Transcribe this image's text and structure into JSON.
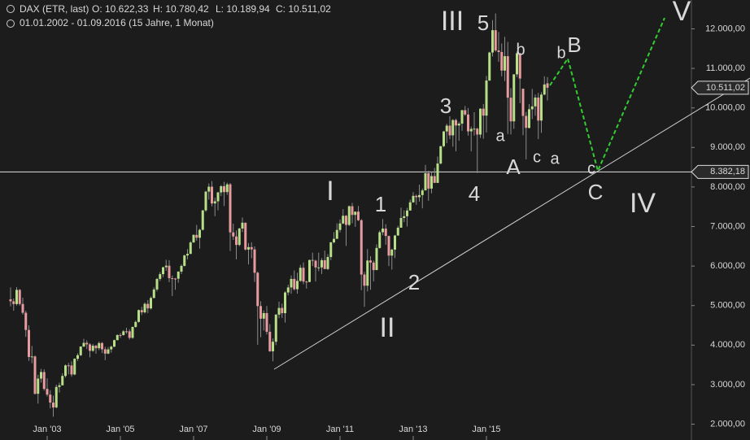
{
  "header": {
    "symbol": "DAX (ETR, last)",
    "open": "O: 10.622,33",
    "high": "H: 10.780,42",
    "low": "L: 10.189,94",
    "close": "C: 10.511,02",
    "range": "01.01.2002 - 01.09.2016 (15 Jahre, 1 Monat)"
  },
  "chart_data": {
    "type": "candlestick",
    "categories": [
      null,
      null,
      null,
      null,
      null,
      null,
      null,
      null,
      null,
      null,
      null,
      null,
      "Jan '03",
      null,
      null,
      null,
      null,
      null,
      null,
      null,
      null,
      null,
      null,
      null,
      null,
      null,
      null,
      null,
      null,
      null,
      null,
      null,
      null,
      null,
      null,
      null,
      "Jan '05",
      null,
      null,
      null,
      null,
      null,
      null,
      null,
      null,
      null,
      null,
      null,
      null,
      null,
      null,
      null,
      null,
      null,
      null,
      null,
      null,
      null,
      null,
      null,
      "Jan '07",
      null,
      null,
      null,
      null,
      null,
      null,
      null,
      null,
      null,
      null,
      null,
      null,
      null,
      null,
      null,
      null,
      null,
      null,
      null,
      null,
      null,
      null,
      null,
      "Jan '09",
      null,
      null,
      null,
      null,
      null,
      null,
      null,
      null,
      null,
      null,
      null,
      null,
      null,
      null,
      null,
      null,
      null,
      null,
      null,
      null,
      null,
      null,
      null,
      "Jan '11",
      null,
      null,
      null,
      null,
      null,
      null,
      null,
      null,
      null,
      null,
      null,
      null,
      null,
      null,
      null,
      null,
      null,
      null,
      null,
      null,
      null,
      null,
      null,
      "Jan '13",
      null,
      null,
      null,
      null,
      null,
      null,
      null,
      null,
      null,
      null,
      null,
      null,
      null,
      null,
      null,
      null,
      null,
      null,
      null,
      null,
      null,
      null,
      null,
      "Jan '15",
      null,
      null,
      null,
      null,
      null,
      null,
      null,
      null,
      null,
      null,
      null,
      null,
      null,
      null,
      null,
      null,
      null,
      null,
      null,
      null
    ],
    "ohlc": [
      [
        5160,
        5460,
        4980,
        5108
      ],
      [
        5108,
        5180,
        4870,
        5039
      ],
      [
        5039,
        5467,
        5000,
        5397
      ],
      [
        5397,
        5420,
        5000,
        5041
      ],
      [
        5041,
        5200,
        4770,
        4818
      ],
      [
        4818,
        4870,
        4210,
        4383
      ],
      [
        4383,
        4500,
        3600,
        3700
      ],
      [
        3700,
        3980,
        3540,
        3713
      ],
      [
        3713,
        3740,
        2750,
        2769
      ],
      [
        2769,
        3250,
        2520,
        3153
      ],
      [
        3153,
        3400,
        3050,
        3320
      ],
      [
        3320,
        3390,
        2850,
        2893
      ],
      [
        2893,
        3160,
        2700,
        2748
      ],
      [
        2748,
        2860,
        2400,
        2547
      ],
      [
        2547,
        2720,
        2190,
        2424
      ],
      [
        2424,
        3000,
        2400,
        2942
      ],
      [
        2942,
        3050,
        2800,
        2983
      ],
      [
        2983,
        3290,
        2980,
        3221
      ],
      [
        3221,
        3510,
        3180,
        3487
      ],
      [
        3487,
        3550,
        3260,
        3485
      ],
      [
        3485,
        3590,
        3200,
        3257
      ],
      [
        3257,
        3670,
        3240,
        3655
      ],
      [
        3655,
        3790,
        3600,
        3745
      ],
      [
        3745,
        3970,
        3720,
        3965
      ],
      [
        3965,
        4160,
        3950,
        4058
      ],
      [
        4058,
        4120,
        3900,
        4018
      ],
      [
        4018,
        4050,
        3690,
        3856
      ],
      [
        3856,
        4030,
        3830,
        3985
      ],
      [
        3985,
        4010,
        3780,
        3921
      ],
      [
        3921,
        4090,
        3870,
        4052
      ],
      [
        4052,
        4080,
        3800,
        3895
      ],
      [
        3895,
        3960,
        3620,
        3785
      ],
      [
        3785,
        3950,
        3770,
        3893
      ],
      [
        3893,
        3990,
        3810,
        3960
      ],
      [
        3960,
        4140,
        3950,
        4126
      ],
      [
        4126,
        4270,
        4120,
        4256
      ],
      [
        4256,
        4300,
        4180,
        4254
      ],
      [
        4254,
        4380,
        4240,
        4350
      ],
      [
        4350,
        4440,
        4290,
        4349
      ],
      [
        4349,
        4400,
        4140,
        4184
      ],
      [
        4184,
        4470,
        4160,
        4460
      ],
      [
        4460,
        4620,
        4440,
        4587
      ],
      [
        4587,
        4900,
        4570,
        4886
      ],
      [
        4886,
        4970,
        4760,
        4829
      ],
      [
        4829,
        5080,
        4800,
        5044
      ],
      [
        5044,
        5140,
        4810,
        4929
      ],
      [
        4929,
        5230,
        4900,
        5193
      ],
      [
        5193,
        5460,
        5180,
        5408
      ],
      [
        5408,
        5700,
        5360,
        5674
      ],
      [
        5674,
        5850,
        5620,
        5796
      ],
      [
        5796,
        5980,
        5720,
        5970
      ],
      [
        5970,
        6160,
        5880,
        6009
      ],
      [
        6009,
        6150,
        5590,
        5693
      ],
      [
        5693,
        5760,
        5240,
        5683
      ],
      [
        5683,
        5700,
        5400,
        5681
      ],
      [
        5681,
        5870,
        5580,
        5859
      ],
      [
        5859,
        6040,
        5800,
        6004
      ],
      [
        6004,
        6290,
        5990,
        6268
      ],
      [
        6268,
        6430,
        6170,
        6309
      ],
      [
        6309,
        6630,
        6300,
        6597
      ],
      [
        6597,
        6800,
        6590,
        6789
      ],
      [
        6789,
        7040,
        6640,
        6716
      ],
      [
        6716,
        6940,
        6440,
        6917
      ],
      [
        6917,
        7420,
        6900,
        7408
      ],
      [
        7408,
        7900,
        7370,
        7883
      ],
      [
        7883,
        8090,
        7680,
        8007
      ],
      [
        8007,
        8150,
        7510,
        7584
      ],
      [
        7584,
        7730,
        7260,
        7638
      ],
      [
        7638,
        7880,
        7410,
        7862
      ],
      [
        7862,
        8050,
        7770,
        8020
      ],
      [
        8020,
        8130,
        7520,
        7871
      ],
      [
        7871,
        8110,
        7800,
        8067
      ],
      [
        8067,
        8100,
        6380,
        6852
      ],
      [
        6852,
        7070,
        6660,
        6748
      ],
      [
        6748,
        6900,
        6170,
        6535
      ],
      [
        6535,
        6970,
        6500,
        6949
      ],
      [
        6949,
        7230,
        6860,
        7097
      ],
      [
        7097,
        7100,
        6390,
        6418
      ],
      [
        6418,
        6580,
        6040,
        6479
      ],
      [
        6479,
        6600,
        6200,
        6422
      ],
      [
        6422,
        6500,
        5600,
        5831
      ],
      [
        5831,
        5860,
        4010,
        4988
      ],
      [
        4988,
        5110,
        4200,
        4669
      ],
      [
        4669,
        4880,
        4370,
        4810
      ],
      [
        4810,
        4990,
        4270,
        4338
      ],
      [
        4338,
        4530,
        3830,
        3844
      ],
      [
        3844,
        4170,
        3590,
        4085
      ],
      [
        4085,
        4790,
        4000,
        4770
      ],
      [
        4770,
        5100,
        4680,
        4941
      ],
      [
        4941,
        5050,
        4690,
        4809
      ],
      [
        4809,
        5360,
        4570,
        5332
      ],
      [
        5332,
        5530,
        5260,
        5459
      ],
      [
        5459,
        5760,
        5300,
        5675
      ],
      [
        5675,
        5890,
        5380,
        5415
      ],
      [
        5415,
        5830,
        5300,
        5625
      ],
      [
        5625,
        6030,
        5600,
        5957
      ],
      [
        5957,
        6090,
        5540,
        5608
      ],
      [
        5608,
        5630,
        5430,
        5598
      ],
      [
        5598,
        6160,
        5590,
        6154
      ],
      [
        6154,
        6340,
        6000,
        6136
      ],
      [
        6136,
        6160,
        5610,
        5965
      ],
      [
        5965,
        6340,
        5870,
        5966
      ],
      [
        5966,
        6200,
        5800,
        6148
      ],
      [
        6148,
        6390,
        5920,
        5925
      ],
      [
        5925,
        6300,
        5900,
        6229
      ],
      [
        6229,
        6610,
        6150,
        6601
      ],
      [
        6601,
        6860,
        6570,
        6688
      ],
      [
        6688,
        7080,
        6690,
        6914
      ],
      [
        6914,
        7180,
        6850,
        7077
      ],
      [
        7077,
        7440,
        7060,
        7272
      ],
      [
        7272,
        7290,
        6510,
        7041
      ],
      [
        7041,
        7530,
        7010,
        7514
      ],
      [
        7514,
        7600,
        7080,
        7294
      ],
      [
        7294,
        7380,
        6990,
        7376
      ],
      [
        7376,
        7520,
        7140,
        7159
      ],
      [
        7159,
        7190,
        5390,
        5785
      ],
      [
        5785,
        5850,
        4970,
        5502
      ],
      [
        5502,
        6430,
        5360,
        6141
      ],
      [
        6141,
        6250,
        5400,
        6089
      ],
      [
        6089,
        6140,
        5610,
        5898
      ],
      [
        5898,
        6550,
        5900,
        6458
      ],
      [
        6458,
        6900,
        6440,
        6856
      ],
      [
        6856,
        7190,
        6780,
        6947
      ],
      [
        6947,
        7060,
        6540,
        6761
      ],
      [
        6761,
        6770,
        6000,
        6264
      ],
      [
        6264,
        6440,
        5910,
        6416
      ],
      [
        6416,
        6790,
        6200,
        6772
      ],
      [
        6772,
        7020,
        6770,
        6970
      ],
      [
        6970,
        7480,
        6970,
        7216
      ],
      [
        7216,
        7410,
        7110,
        7260
      ],
      [
        7260,
        7470,
        7000,
        7405
      ],
      [
        7405,
        7680,
        7400,
        7612
      ],
      [
        7612,
        7870,
        7600,
        7776
      ],
      [
        7776,
        7810,
        7550,
        7742
      ],
      [
        7742,
        8060,
        7630,
        7795
      ],
      [
        7795,
        7960,
        7460,
        7914
      ],
      [
        7914,
        8560,
        7910,
        8349
      ],
      [
        8349,
        8410,
        7650,
        7959
      ],
      [
        7959,
        8380,
        7840,
        8276
      ],
      [
        8276,
        8480,
        8100,
        8104
      ],
      [
        8104,
        8770,
        8100,
        8594
      ],
      [
        8594,
        9040,
        8570,
        9033
      ],
      [
        9033,
        9420,
        9000,
        9405
      ],
      [
        9405,
        9600,
        9110,
        9552
      ],
      [
        9552,
        9790,
        9210,
        9306
      ],
      [
        9306,
        9720,
        9020,
        9692
      ],
      [
        9692,
        9730,
        8900,
        9556
      ],
      [
        9556,
        9650,
        9170,
        9603
      ],
      [
        9603,
        9950,
        9420,
        9943
      ],
      [
        9943,
        10050,
        9800,
        9833
      ],
      [
        9833,
        10000,
        9300,
        9407
      ],
      [
        9407,
        9530,
        8900,
        9470
      ],
      [
        9470,
        9890,
        9300,
        9474
      ],
      [
        9474,
        9500,
        8350,
        9326
      ],
      [
        9326,
        9990,
        9240,
        9980
      ],
      [
        9980,
        10100,
        9220,
        9806
      ],
      [
        9806,
        10810,
        9380,
        10694
      ],
      [
        10694,
        11420,
        10680,
        11402
      ],
      [
        11402,
        12220,
        11300,
        11966
      ],
      [
        11966,
        12390,
        11420,
        11454
      ],
      [
        11454,
        11920,
        11170,
        11414
      ],
      [
        11414,
        11630,
        10800,
        10945
      ],
      [
        10945,
        11800,
        10680,
        11309
      ],
      [
        11309,
        11670,
        9340,
        10259
      ],
      [
        10259,
        10500,
        9330,
        9660
      ],
      [
        9660,
        10850,
        9470,
        10850
      ],
      [
        10850,
        11430,
        10780,
        11382
      ],
      [
        11382,
        11390,
        10120,
        10743
      ],
      [
        10486,
        10490,
        9310,
        9798
      ],
      [
        9798,
        9900,
        8700,
        9495
      ],
      [
        9495,
        10100,
        9480,
        9966
      ],
      [
        9966,
        10480,
        9720,
        10039
      ],
      [
        10039,
        10340,
        9800,
        10263
      ],
      [
        10263,
        10380,
        9210,
        9680
      ],
      [
        9680,
        10400,
        9370,
        10337
      ],
      [
        10337,
        10800,
        10320,
        10593
      ],
      [
        10622.33,
        10780.42,
        10189.94,
        10511.02
      ]
    ],
    "up_color": "#b6df87",
    "down_color": "#e89a9f",
    "ylim": [
      1600,
      12730
    ],
    "yticks": [
      {
        "value": 2000,
        "label": "2.000,00"
      },
      {
        "value": 3000,
        "label": "3.000,00"
      },
      {
        "value": 4000,
        "label": "4.000,00"
      },
      {
        "value": 5000,
        "label": "5.000,00"
      },
      {
        "value": 6000,
        "label": "6.000,00"
      },
      {
        "value": 7000,
        "label": "7.000,00"
      },
      {
        "value": 8000,
        "label": "8.000,00"
      },
      {
        "value": 9000,
        "label": "9.000,00"
      },
      {
        "value": 10000,
        "label": "10.000,00"
      },
      {
        "value": 11000,
        "label": "11.000,00"
      },
      {
        "value": 12000,
        "label": "12.000,00"
      }
    ],
    "last_price": {
      "value": 10511.02,
      "label": "10.511,02"
    },
    "level": {
      "value": 8382.18,
      "label": "8.382,18"
    },
    "annotations": [
      {
        "text": "III",
        "color": "#ffffff"
      },
      {
        "text": "5",
        "color": "#2233dd"
      },
      {
        "text": "b",
        "color": "#dd1111"
      },
      {
        "text": "b",
        "color": "#f0c020"
      },
      {
        "text": "B",
        "color": "#2233dd"
      },
      {
        "text": "V",
        "color": "#ffffff"
      },
      {
        "text": "3",
        "color": "#2233dd"
      },
      {
        "text": "a",
        "color": "#dd1111"
      },
      {
        "text": "c",
        "color": "#dd1111"
      },
      {
        "text": "a",
        "color": "#f0c020"
      },
      {
        "text": "A",
        "color": "#2233dd"
      },
      {
        "text": "4",
        "color": "#2233dd"
      },
      {
        "text": "c",
        "color": "#f0c020"
      },
      {
        "text": "C",
        "color": "#2233dd"
      },
      {
        "text": "IV",
        "color": "#ffffff"
      },
      {
        "text": "I",
        "color": "#ffffff"
      },
      {
        "text": "1",
        "color": "#2233dd"
      },
      {
        "text": "2",
        "color": "#2233dd"
      },
      {
        "text": "II",
        "color": "#ffffff"
      }
    ]
  }
}
